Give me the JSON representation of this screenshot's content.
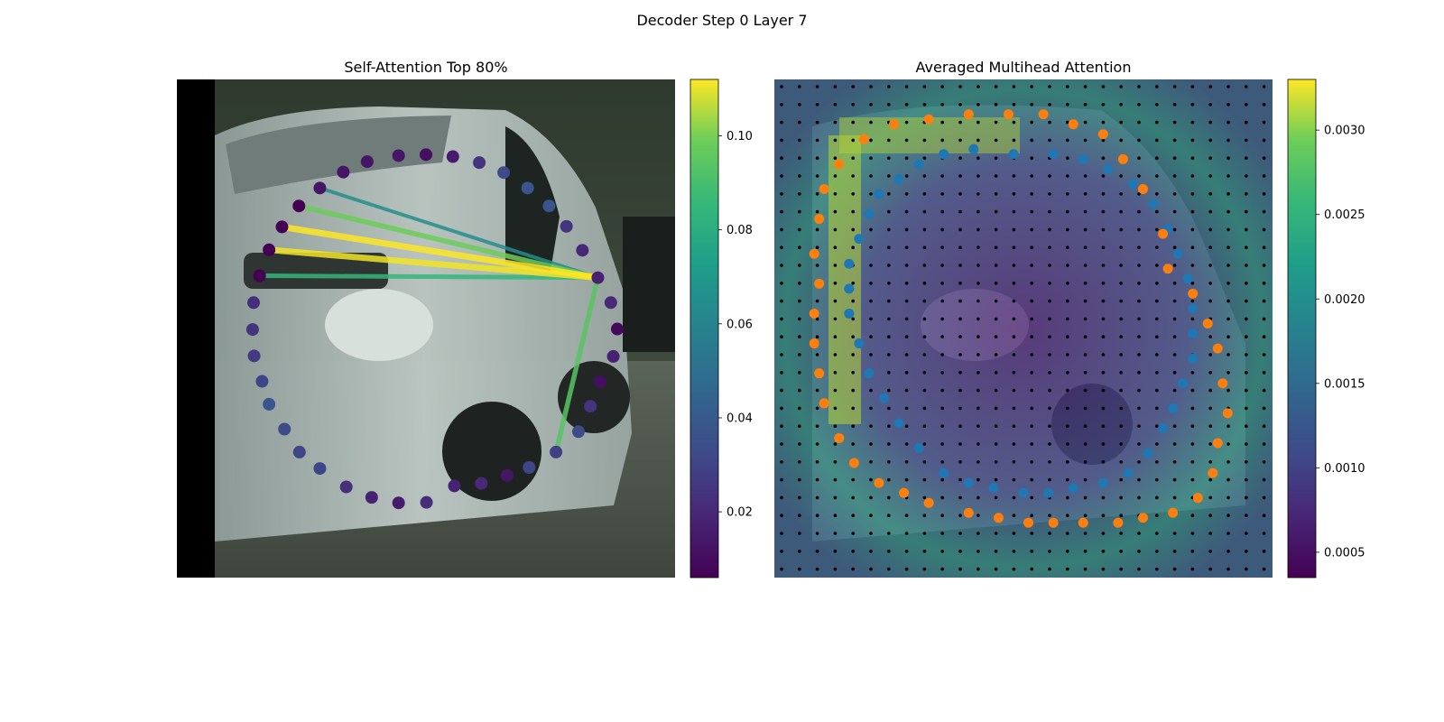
{
  "suptitle": "Decoder Step 0 Layer 7",
  "chart_data": [
    {
      "type": "scatter",
      "title": "Self-Attention Top 80%",
      "xlabel": "",
      "ylabel": "",
      "axes_visible": false,
      "background": "photo of a white van (street scene), black strip on left edge",
      "colormap": "viridis",
      "colorbar": {
        "ticks": [
          0.02,
          0.04,
          0.06,
          0.08,
          0.1
        ],
        "tick_labels": [
          "0.02",
          "0.04",
          "0.06",
          "0.08",
          "0.10"
        ],
        "range": [
          0.006,
          0.112
        ]
      },
      "query_point_index": 8,
      "points": [
        {
          "i": 0,
          "x": 0.5,
          "y": 0.151,
          "w": 0.01
        },
        {
          "i": 1,
          "x": 0.554,
          "y": 0.155,
          "w": 0.014
        },
        {
          "i": 2,
          "x": 0.607,
          "y": 0.167,
          "w": 0.022
        },
        {
          "i": 3,
          "x": 0.656,
          "y": 0.187,
          "w": 0.03
        },
        {
          "i": 4,
          "x": 0.704,
          "y": 0.218,
          "w": 0.034
        },
        {
          "i": 5,
          "x": 0.747,
          "y": 0.254,
          "w": 0.034
        },
        {
          "i": 6,
          "x": 0.782,
          "y": 0.295,
          "w": 0.022
        },
        {
          "i": 7,
          "x": 0.814,
          "y": 0.343,
          "w": 0.018
        },
        {
          "i": 8,
          "x": 0.845,
          "y": 0.398,
          "w": 0.016
        },
        {
          "i": 9,
          "x": 0.871,
          "y": 0.448,
          "w": 0.018
        },
        {
          "i": 10,
          "x": 0.884,
          "y": 0.501,
          "w": 0.008
        },
        {
          "i": 11,
          "x": 0.876,
          "y": 0.556,
          "w": 0.016
        },
        {
          "i": 12,
          "x": 0.85,
          "y": 0.607,
          "w": 0.01
        },
        {
          "i": 13,
          "x": 0.83,
          "y": 0.656,
          "w": 0.022
        },
        {
          "i": 14,
          "x": 0.806,
          "y": 0.707,
          "w": 0.03
        },
        {
          "i": 15,
          "x": 0.761,
          "y": 0.748,
          "w": 0.026
        },
        {
          "i": 16,
          "x": 0.707,
          "y": 0.779,
          "w": 0.028
        },
        {
          "i": 17,
          "x": 0.663,
          "y": 0.795,
          "w": 0.012
        },
        {
          "i": 18,
          "x": 0.611,
          "y": 0.811,
          "w": 0.018
        },
        {
          "i": 19,
          "x": 0.557,
          "y": 0.816,
          "w": 0.016
        },
        {
          "i": 20,
          "x": 0.501,
          "y": 0.849,
          "w": 0.02
        },
        {
          "i": 21,
          "x": 0.445,
          "y": 0.85,
          "w": 0.014
        },
        {
          "i": 22,
          "x": 0.391,
          "y": 0.839,
          "w": 0.016
        },
        {
          "i": 23,
          "x": 0.34,
          "y": 0.818,
          "w": 0.02
        },
        {
          "i": 24,
          "x": 0.287,
          "y": 0.781,
          "w": 0.028
        },
        {
          "i": 25,
          "x": 0.246,
          "y": 0.748,
          "w": 0.028
        },
        {
          "i": 26,
          "x": 0.216,
          "y": 0.702,
          "w": 0.03
        },
        {
          "i": 27,
          "x": 0.185,
          "y": 0.652,
          "w": 0.034
        },
        {
          "i": 28,
          "x": 0.171,
          "y": 0.606,
          "w": 0.028
        },
        {
          "i": 29,
          "x": 0.155,
          "y": 0.555,
          "w": 0.024
        },
        {
          "i": 30,
          "x": 0.152,
          "y": 0.502,
          "w": 0.022
        },
        {
          "i": 31,
          "x": 0.154,
          "y": 0.448,
          "w": 0.02
        },
        {
          "i": 32,
          "x": 0.166,
          "y": 0.394,
          "w": 0.006
        },
        {
          "i": 33,
          "x": 0.185,
          "y": 0.342,
          "w": 0.006
        },
        {
          "i": 34,
          "x": 0.211,
          "y": 0.296,
          "w": 0.006
        },
        {
          "i": 35,
          "x": 0.245,
          "y": 0.254,
          "w": 0.006
        },
        {
          "i": 36,
          "x": 0.287,
          "y": 0.218,
          "w": 0.012
        },
        {
          "i": 37,
          "x": 0.334,
          "y": 0.186,
          "w": 0.012
        },
        {
          "i": 38,
          "x": 0.382,
          "y": 0.165,
          "w": 0.012
        },
        {
          "i": 39,
          "x": 0.445,
          "y": 0.153,
          "w": 0.012
        }
      ],
      "attention_lines": [
        {
          "from": 8,
          "to": 34,
          "weight": 0.112
        },
        {
          "from": 8,
          "to": 33,
          "weight": 0.11
        },
        {
          "from": 8,
          "to": 35,
          "weight": 0.088
        },
        {
          "from": 8,
          "to": 32,
          "weight": 0.076
        },
        {
          "from": 8,
          "to": 36,
          "weight": 0.058
        },
        {
          "from": 8,
          "to": 15,
          "weight": 0.084
        }
      ]
    },
    {
      "type": "heatmap",
      "title": "Averaged Multihead Attention",
      "xlabel": "",
      "ylabel": "",
      "axes_visible": false,
      "background": "same van photo with attention heatmap overlay and a grid of sampling dots",
      "colormap": "viridis",
      "colorbar": {
        "ticks": [
          0.0005,
          0.001,
          0.0015,
          0.002,
          0.0025,
          0.003
        ],
        "tick_labels": [
          "0.0005",
          "0.0010",
          "0.0015",
          "0.0020",
          "0.0025",
          "0.0030"
        ],
        "range": [
          0.00035,
          0.0033
        ]
      },
      "series": [
        {
          "color": "#1f77b4",
          "points": [
            [
              0.48,
              0.15
            ],
            [
              0.56,
              0.15
            ],
            [
              0.62,
              0.16
            ],
            [
              0.67,
              0.18
            ],
            [
              0.72,
              0.21
            ],
            [
              0.76,
              0.25
            ],
            [
              0.79,
              0.3
            ],
            [
              0.81,
              0.35
            ],
            [
              0.83,
              0.4
            ],
            [
              0.84,
              0.46
            ],
            [
              0.84,
              0.51
            ],
            [
              0.84,
              0.56
            ],
            [
              0.82,
              0.61
            ],
            [
              0.8,
              0.66
            ],
            [
              0.78,
              0.7
            ],
            [
              0.75,
              0.75
            ],
            [
              0.71,
              0.79
            ],
            [
              0.66,
              0.81
            ],
            [
              0.6,
              0.82
            ],
            [
              0.55,
              0.83
            ],
            [
              0.5,
              0.83
            ],
            [
              0.44,
              0.82
            ],
            [
              0.39,
              0.81
            ],
            [
              0.34,
              0.79
            ],
            [
              0.29,
              0.74
            ],
            [
              0.25,
              0.69
            ],
            [
              0.22,
              0.64
            ],
            [
              0.19,
              0.59
            ],
            [
              0.17,
              0.53
            ],
            [
              0.15,
              0.47
            ],
            [
              0.15,
              0.42
            ],
            [
              0.15,
              0.37
            ],
            [
              0.17,
              0.32
            ],
            [
              0.19,
              0.27
            ],
            [
              0.21,
              0.23
            ],
            [
              0.25,
              0.2
            ],
            [
              0.29,
              0.17
            ],
            [
              0.34,
              0.15
            ],
            [
              0.4,
              0.14
            ]
          ]
        },
        {
          "color": "#ff7f0e",
          "points": [
            [
              0.47,
              0.07
            ],
            [
              0.54,
              0.07
            ],
            [
              0.6,
              0.09
            ],
            [
              0.66,
              0.11
            ],
            [
              0.7,
              0.16
            ],
            [
              0.74,
              0.22
            ],
            [
              0.78,
              0.31
            ],
            [
              0.79,
              0.38
            ],
            [
              0.84,
              0.43
            ],
            [
              0.87,
              0.49
            ],
            [
              0.89,
              0.54
            ],
            [
              0.9,
              0.61
            ],
            [
              0.91,
              0.67
            ],
            [
              0.89,
              0.73
            ],
            [
              0.88,
              0.79
            ],
            [
              0.85,
              0.84
            ],
            [
              0.8,
              0.87
            ],
            [
              0.74,
              0.88
            ],
            [
              0.69,
              0.89
            ],
            [
              0.62,
              0.89
            ],
            [
              0.56,
              0.89
            ],
            [
              0.51,
              0.89
            ],
            [
              0.45,
              0.88
            ],
            [
              0.39,
              0.87
            ],
            [
              0.31,
              0.85
            ],
            [
              0.26,
              0.83
            ],
            [
              0.21,
              0.81
            ],
            [
              0.16,
              0.77
            ],
            [
              0.13,
              0.72
            ],
            [
              0.1,
              0.65
            ],
            [
              0.09,
              0.59
            ],
            [
              0.08,
              0.53
            ],
            [
              0.08,
              0.47
            ],
            [
              0.09,
              0.41
            ],
            [
              0.08,
              0.35
            ],
            [
              0.09,
              0.28
            ],
            [
              0.1,
              0.22
            ],
            [
              0.13,
              0.17
            ],
            [
              0.18,
              0.12
            ],
            [
              0.24,
              0.09
            ],
            [
              0.31,
              0.08
            ],
            [
              0.39,
              0.07
            ]
          ]
        }
      ]
    }
  ]
}
